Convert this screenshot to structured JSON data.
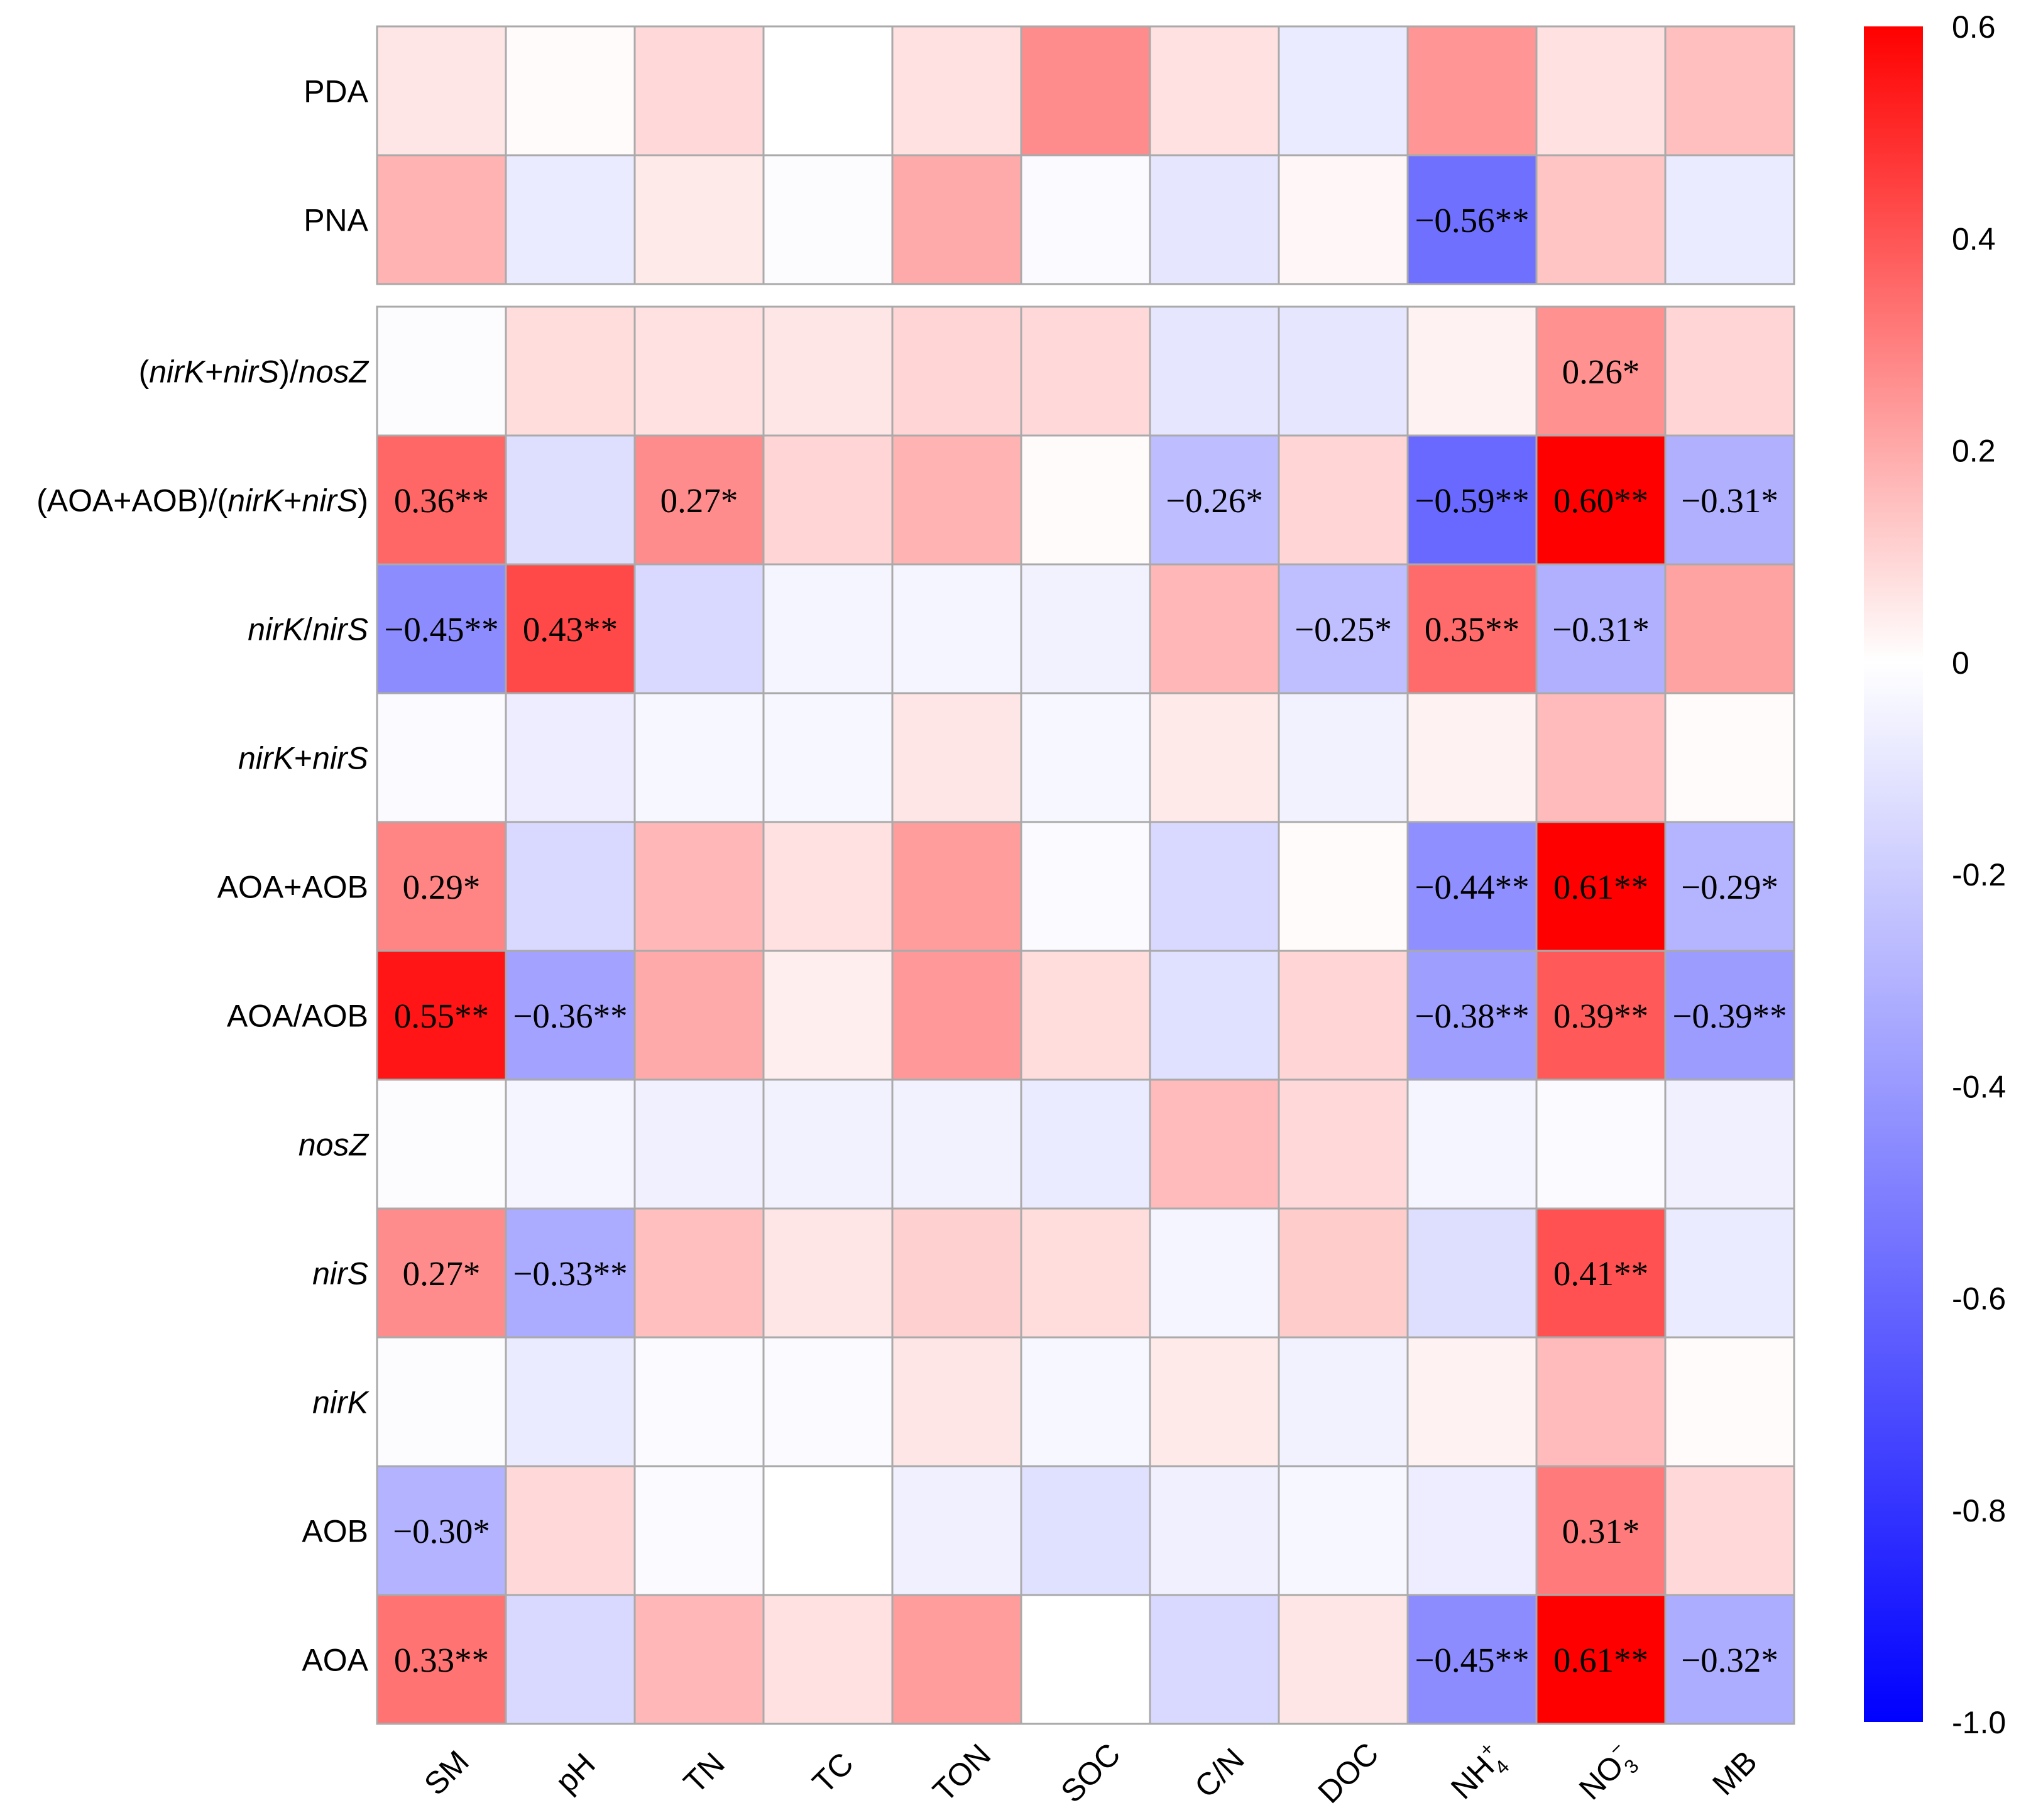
{
  "chart_data": {
    "type": "heatmap",
    "x_labels": [
      {
        "text": "SM"
      },
      {
        "text": "pH"
      },
      {
        "text": "TN"
      },
      {
        "text": "TC"
      },
      {
        "text": "TON"
      },
      {
        "text": "SOC"
      },
      {
        "text": "C/N"
      },
      {
        "text": "DOC"
      },
      {
        "text": "NH",
        "sub": "4",
        "sup": "+"
      },
      {
        "text": "NO",
        "sub": "3",
        "sup": "−"
      },
      {
        "text": "MB"
      }
    ],
    "panels": [
      {
        "rows": [
          {
            "segments": [
              {
                "t": "PDA",
                "i": false
              }
            ],
            "values": [
              0.06,
              0.01,
              0.09,
              0.0,
              0.07,
              0.27,
              0.07,
              -0.08,
              0.25,
              0.07,
              0.15
            ],
            "labels": [
              "",
              "",
              "",
              "",
              "",
              "",
              "",
              "",
              "",
              "",
              ""
            ]
          },
          {
            "segments": [
              {
                "t": "PNA",
                "i": false
              }
            ],
            "values": [
              0.18,
              -0.08,
              0.05,
              -0.01,
              0.2,
              -0.02,
              -0.1,
              0.02,
              -0.56,
              0.14,
              -0.08
            ],
            "labels": [
              "",
              "",
              "",
              "",
              "",
              "",
              "",
              "",
              "−0.56**",
              "",
              ""
            ]
          }
        ]
      },
      {
        "rows": [
          {
            "segments": [
              {
                "t": "(",
                "i": false
              },
              {
                "t": "nirK",
                "i": true
              },
              {
                "t": "+",
                "i": false
              },
              {
                "t": "nirS",
                "i": true
              },
              {
                "t": ")/",
                "i": false
              },
              {
                "t": "nosZ",
                "i": true
              }
            ],
            "values": [
              -0.01,
              0.08,
              0.07,
              0.06,
              0.1,
              0.09,
              -0.1,
              -0.1,
              0.03,
              0.26,
              0.1
            ],
            "labels": [
              "",
              "",
              "",
              "",
              "",
              "",
              "",
              "",
              "",
              "0.26*",
              ""
            ]
          },
          {
            "segments": [
              {
                "t": "(AOA+AOB)/(",
                "i": false
              },
              {
                "t": "nirK",
                "i": true
              },
              {
                "t": "+",
                "i": false
              },
              {
                "t": "nirS",
                "i": true
              },
              {
                "t": ")",
                "i": false
              }
            ],
            "values": [
              0.36,
              -0.13,
              0.27,
              0.1,
              0.18,
              0.01,
              -0.26,
              0.1,
              -0.59,
              0.6,
              -0.31
            ],
            "labels": [
              "0.36**",
              "",
              "0.27*",
              "",
              "",
              "",
              "−0.26*",
              "",
              "−0.59**",
              "0.60**",
              "−0.31*"
            ]
          },
          {
            "segments": [
              {
                "t": "nirK",
                "i": true
              },
              {
                "t": "/",
                "i": false
              },
              {
                "t": "nirS",
                "i": true
              }
            ],
            "values": [
              -0.45,
              0.43,
              -0.15,
              -0.04,
              -0.04,
              -0.05,
              0.17,
              -0.25,
              0.35,
              -0.31,
              0.22
            ],
            "labels": [
              "−0.45**",
              "0.43**",
              "",
              "",
              "",
              "",
              "",
              "−0.25*",
              "0.35**",
              "−0.31*",
              ""
            ]
          },
          {
            "segments": [
              {
                "t": "nirK",
                "i": true
              },
              {
                "t": "+",
                "i": false
              },
              {
                "t": "nirS",
                "i": true
              }
            ],
            "values": [
              -0.02,
              -0.07,
              -0.03,
              -0.03,
              0.06,
              -0.03,
              0.05,
              -0.05,
              0.03,
              0.16,
              0.01
            ],
            "labels": [
              "",
              "",
              "",
              "",
              "",
              "",
              "",
              "",
              "",
              "",
              ""
            ]
          },
          {
            "segments": [
              {
                "t": "AOA+AOB",
                "i": false
              }
            ],
            "values": [
              0.29,
              -0.15,
              0.17,
              0.07,
              0.23,
              -0.02,
              -0.15,
              0.01,
              -0.44,
              0.61,
              -0.29
            ],
            "labels": [
              "0.29*",
              "",
              "",
              "",
              "",
              "",
              "",
              "",
              "−0.44**",
              "0.61**",
              "−0.29*"
            ]
          },
          {
            "segments": [
              {
                "t": "AOA/AOB",
                "i": false
              }
            ],
            "values": [
              0.55,
              -0.36,
              0.2,
              0.04,
              0.24,
              0.08,
              -0.12,
              0.1,
              -0.38,
              0.39,
              -0.39
            ],
            "labels": [
              "0.55**",
              "−0.36**",
              "",
              "",
              "",
              "",
              "",
              "",
              "−0.38**",
              "0.39**",
              "−0.39**"
            ]
          },
          {
            "segments": [
              {
                "t": "nosZ",
                "i": true
              }
            ],
            "values": [
              -0.01,
              -0.04,
              -0.06,
              -0.05,
              -0.05,
              -0.08,
              0.16,
              0.09,
              -0.04,
              -0.02,
              -0.06
            ],
            "labels": [
              "",
              "",
              "",
              "",
              "",
              "",
              "",
              "",
              "",
              "",
              ""
            ]
          },
          {
            "segments": [
              {
                "t": "nirS",
                "i": true
              }
            ],
            "values": [
              0.27,
              -0.33,
              0.15,
              0.06,
              0.11,
              0.08,
              -0.04,
              0.12,
              -0.13,
              0.41,
              -0.08
            ],
            "labels": [
              "0.27*",
              "−0.33**",
              "",
              "",
              "",
              "",
              "",
              "",
              "",
              "0.41**",
              ""
            ]
          },
          {
            "segments": [
              {
                "t": "nirK",
                "i": true
              }
            ],
            "values": [
              -0.01,
              -0.08,
              -0.02,
              -0.02,
              0.06,
              -0.03,
              0.05,
              -0.05,
              0.03,
              0.16,
              0.01
            ],
            "labels": [
              "",
              "",
              "",
              "",
              "",
              "",
              "",
              "",
              "",
              "",
              ""
            ]
          },
          {
            "segments": [
              {
                "t": "AOB",
                "i": false
              }
            ],
            "values": [
              -0.3,
              0.09,
              -0.02,
              0.0,
              -0.06,
              -0.12,
              -0.06,
              -0.03,
              -0.07,
              0.31,
              0.09
            ],
            "labels": [
              "−0.30*",
              "",
              "",
              "",
              "",
              "",
              "",
              "",
              "",
              "0.31*",
              ""
            ]
          },
          {
            "segments": [
              {
                "t": "AOA",
                "i": false
              }
            ],
            "values": [
              0.33,
              -0.15,
              0.17,
              0.07,
              0.23,
              0.0,
              -0.15,
              0.06,
              -0.45,
              0.61,
              -0.32
            ],
            "labels": [
              "0.33**",
              "",
              "",
              "",
              "",
              "",
              "",
              "",
              "−0.45**",
              "0.61**",
              "−0.32*"
            ]
          }
        ]
      }
    ],
    "colorbar": {
      "min": -1.0,
      "max": 0.6,
      "center": 0,
      "colors": {
        "low": "#0000ff",
        "mid": "#ffffff",
        "high": "#ff0000"
      },
      "ticks": [
        "0.6",
        "0.4",
        "0.2",
        "0",
        "-0.2",
        "-0.4",
        "-0.6",
        "-0.8",
        "-1.0"
      ]
    },
    "colors": {
      "grid": "#aaaaaa",
      "text": "#000000"
    }
  }
}
